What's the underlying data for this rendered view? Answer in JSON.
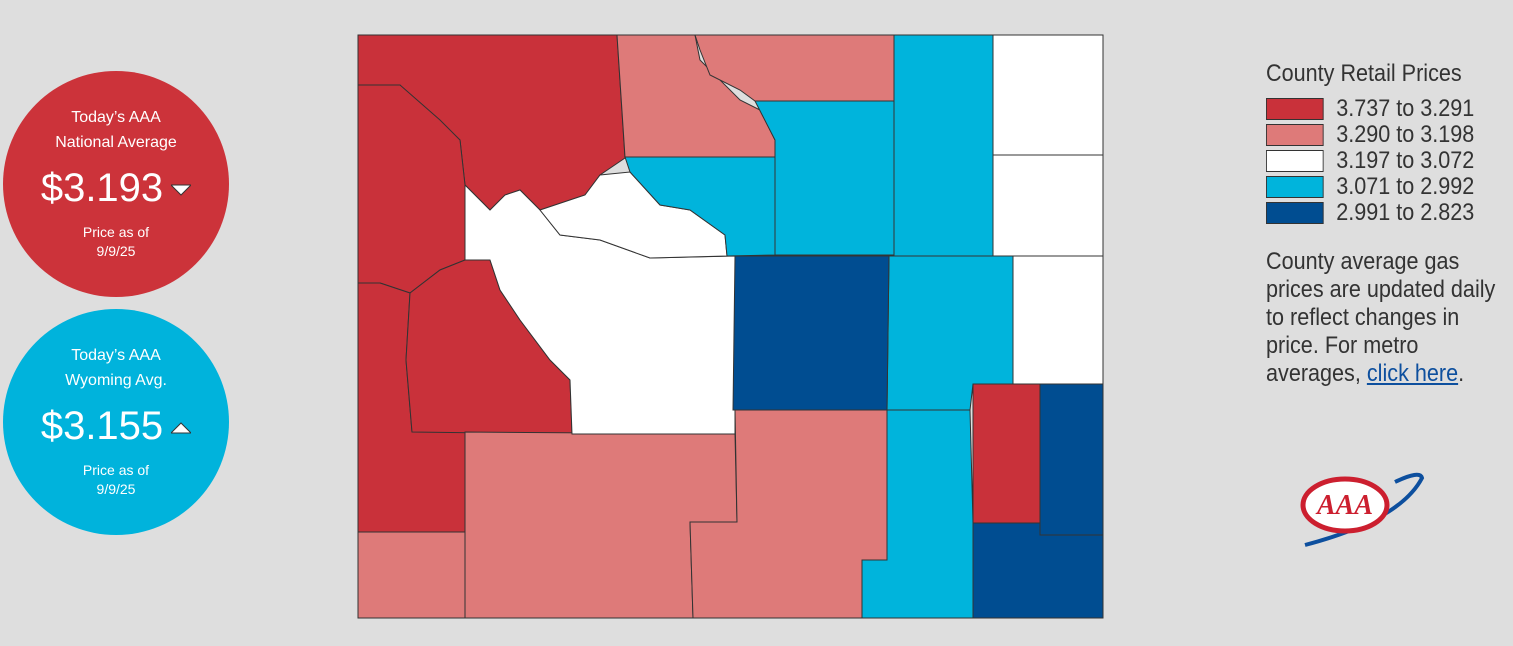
{
  "badges": [
    {
      "title_lines": [
        "Today’s AAA",
        "National Average"
      ],
      "price": "$3.193",
      "trend": "down",
      "note_lines": [
        "Price as of",
        "9/9/25"
      ],
      "color": "#cc333a"
    },
    {
      "title_lines": [
        "Today’s AAA",
        "Wyoming Avg."
      ],
      "price": "$3.155",
      "trend": "up",
      "note_lines": [
        "Price as of",
        "9/9/25"
      ],
      "color": "#00b3dc"
    }
  ],
  "legend": {
    "title": "County Retail Prices",
    "items": [
      {
        "label": "3.737 to 3.291",
        "color": "#c9313a"
      },
      {
        "label": "3.290 to 3.198",
        "color": "#de7a79"
      },
      {
        "label": "3.197 to 3.072",
        "color": "#ffffff"
      },
      {
        "label": "3.071 to 2.992",
        "color": "#00b4dc"
      },
      {
        "label": "2.991 to 2.823",
        "color": "#004d91"
      }
    ]
  },
  "note": {
    "text": "County average gas prices are updated daily to reflect changes in price. For metro averages, ",
    "link": "click here",
    "end": "."
  },
  "logo": {
    "text": "AAA"
  }
}
